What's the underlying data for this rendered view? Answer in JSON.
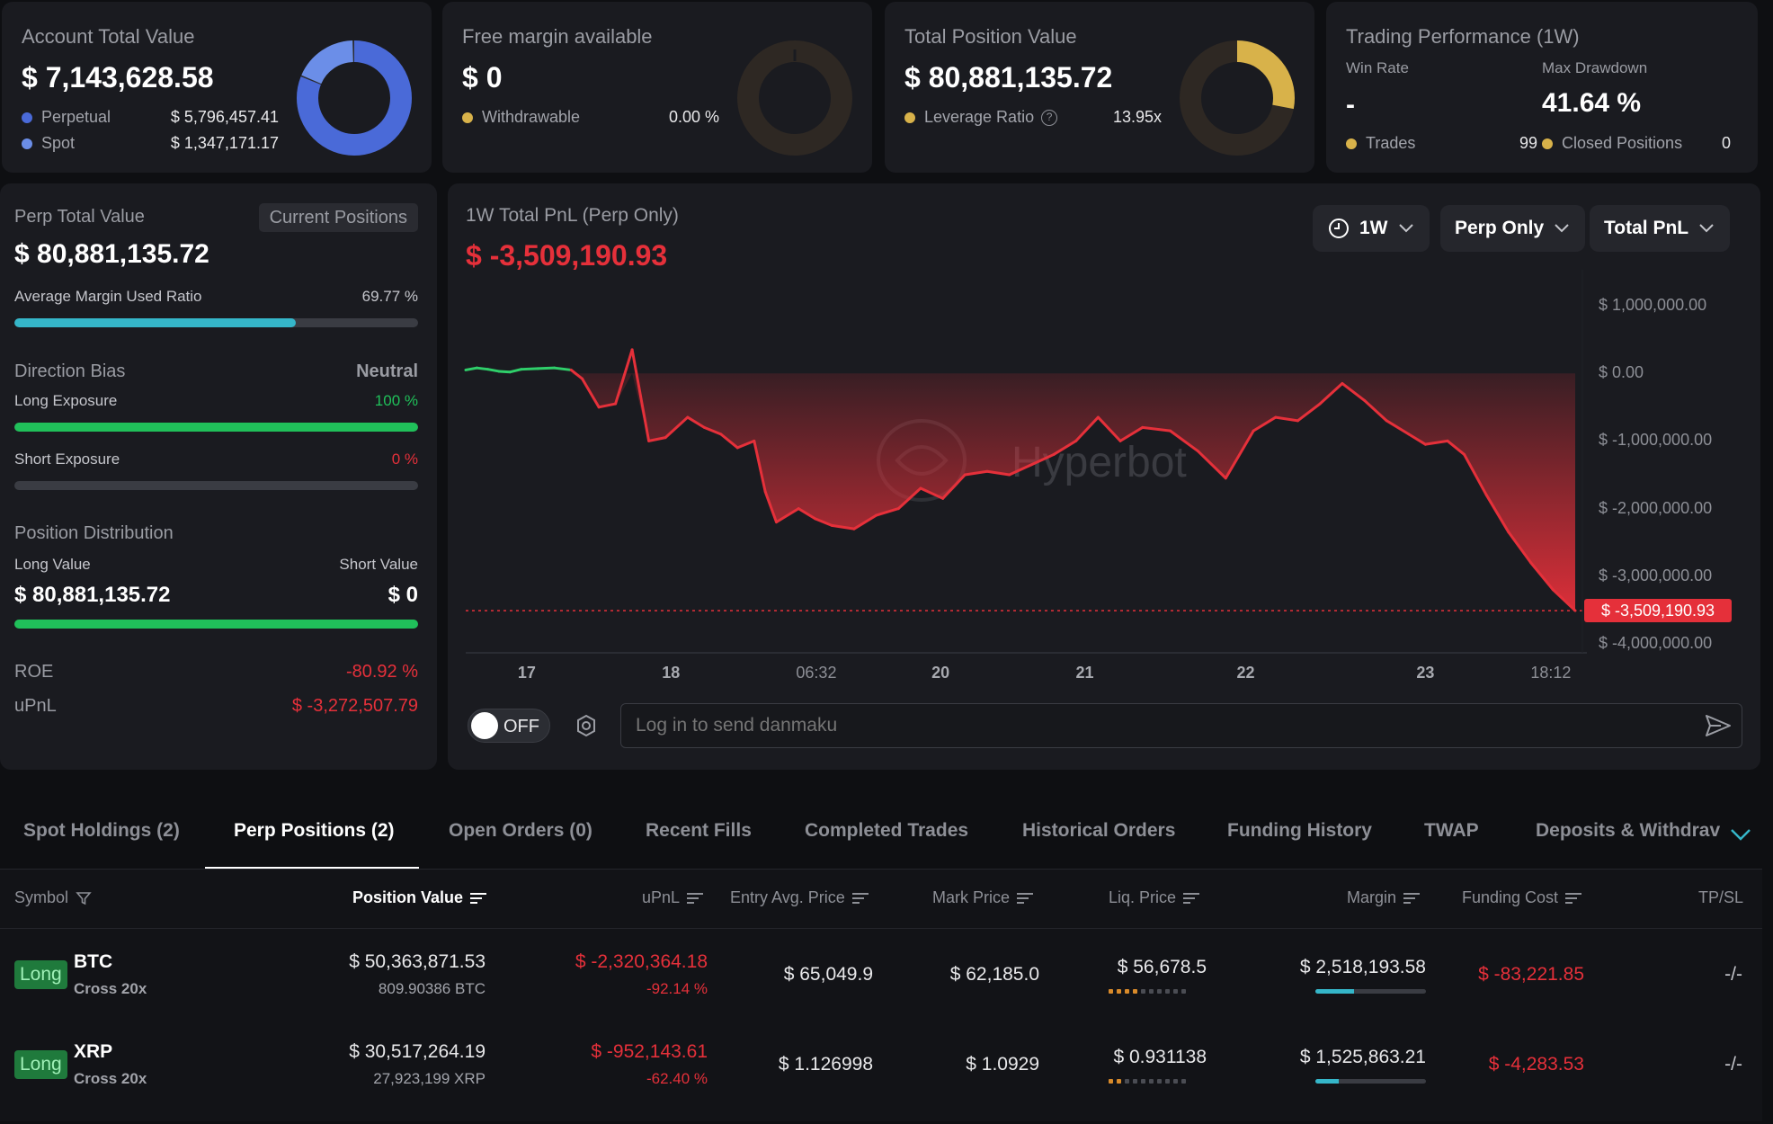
{
  "top_cards": {
    "account": {
      "title": "Account Total Value",
      "value": "$ 7,143,628.58",
      "legend": [
        {
          "label": "Perpetual",
          "value": "$ 5,796,457.41",
          "color": "#4a6ad8"
        },
        {
          "label": "Spot",
          "value": "$ 1,347,171.17",
          "color": "#6b8ee8"
        }
      ],
      "donut_fraction": 0.81
    },
    "margin": {
      "title": "Free margin available",
      "value": "$ 0",
      "legend": [
        {
          "label": "Withdrawable",
          "value": "0.00 %",
          "color": "#d8b24a"
        }
      ],
      "donut_fraction": 0.0
    },
    "position": {
      "title": "Total Position Value",
      "value": "$ 80,881,135.72",
      "legend": [
        {
          "label": "Leverage Ratio",
          "value": "13.95x",
          "color": "#d8b24a"
        }
      ],
      "donut_fraction": 0.28
    },
    "performance": {
      "title": "Trading Performance (1W)",
      "win_rate_label": "Win Rate",
      "win_rate_value": "-",
      "max_drawdown_label": "Max Drawdown",
      "max_drawdown_value": "41.64 %",
      "trades_label": "Trades",
      "trades_value": "99",
      "closed_label": "Closed Positions",
      "closed_value": "0",
      "dot_color": "#d8b24a"
    }
  },
  "left_panel": {
    "perp_title": "Perp Total Value",
    "current_positions_btn": "Current Positions",
    "perp_value": "$ 80,881,135.72",
    "avg_margin_label": "Average Margin Used Ratio",
    "avg_margin_value": "69.77 %",
    "avg_margin_fraction": 0.6977,
    "direction_label": "Direction Bias",
    "direction_value": "Neutral",
    "long_exposure_label": "Long Exposure",
    "long_exposure_value": "100 %",
    "long_exposure_fraction": 1.0,
    "short_exposure_label": "Short Exposure",
    "short_exposure_value": "0 %",
    "short_exposure_fraction": 0.0,
    "distribution_label": "Position Distribution",
    "long_value_label": "Long Value",
    "short_value_label": "Short Value",
    "long_value": "$ 80,881,135.72",
    "short_value": "$ 0",
    "long_share_fraction": 1.0,
    "roe_label": "ROE",
    "roe_value": "-80.92 %",
    "upnl_label": "uPnL",
    "upnl_value": "$ -3,272,507.79"
  },
  "chart_panel": {
    "title": "1W Total PnL (Perp Only)",
    "value": "$ -3,509,190.93",
    "dropdowns": {
      "range": "1W",
      "scope": "Perp Only",
      "metric": "Total PnL"
    },
    "watermark": "Hyperbot",
    "danmaku_toggle": "OFF",
    "danmaku_placeholder": "Log in to send danmaku"
  },
  "chart_data": {
    "type": "area",
    "ylim": [
      -4000000,
      1000000
    ],
    "y_ticks": [
      "$ 1,000,000.00",
      "$ 0.00",
      "$ -1,000,000.00",
      "$ -2,000,000.00",
      "$ -3,000,000.00",
      "$ -4,000,000.00"
    ],
    "y_tick_values": [
      1000000,
      0,
      -1000000,
      -2000000,
      -3000000,
      -4000000
    ],
    "x_ticks": [
      {
        "label": "17",
        "t": 0.055,
        "bold": true
      },
      {
        "label": "18",
        "t": 0.185,
        "bold": true
      },
      {
        "label": "06:32",
        "t": 0.316,
        "bold": false
      },
      {
        "label": "20",
        "t": 0.428,
        "bold": true
      },
      {
        "label": "21",
        "t": 0.558,
        "bold": true
      },
      {
        "label": "22",
        "t": 0.703,
        "bold": true
      },
      {
        "label": "23",
        "t": 0.865,
        "bold": true
      },
      {
        "label": "18:12",
        "t": 0.978,
        "bold": false
      }
    ],
    "last_value_label": "$ -3,509,190.93",
    "last_value": -3509190.93,
    "points": [
      {
        "t": 0.0,
        "v": 50000
      },
      {
        "t": 0.01,
        "v": 80000
      },
      {
        "t": 0.02,
        "v": 60000
      },
      {
        "t": 0.03,
        "v": 30000
      },
      {
        "t": 0.04,
        "v": 20000
      },
      {
        "t": 0.05,
        "v": 60000
      },
      {
        "t": 0.065,
        "v": 70000
      },
      {
        "t": 0.08,
        "v": 80000
      },
      {
        "t": 0.095,
        "v": 50000
      },
      {
        "t": 0.105,
        "v": -80000
      },
      {
        "t": 0.12,
        "v": -500000
      },
      {
        "t": 0.135,
        "v": -450000
      },
      {
        "t": 0.15,
        "v": 350000
      },
      {
        "t": 0.165,
        "v": -1000000
      },
      {
        "t": 0.18,
        "v": -950000
      },
      {
        "t": 0.2,
        "v": -650000
      },
      {
        "t": 0.215,
        "v": -800000
      },
      {
        "t": 0.23,
        "v": -900000
      },
      {
        "t": 0.245,
        "v": -1100000
      },
      {
        "t": 0.26,
        "v": -1000000
      },
      {
        "t": 0.27,
        "v": -1750000
      },
      {
        "t": 0.28,
        "v": -2200000
      },
      {
        "t": 0.3,
        "v": -2000000
      },
      {
        "t": 0.315,
        "v": -2150000
      },
      {
        "t": 0.33,
        "v": -2250000
      },
      {
        "t": 0.35,
        "v": -2300000
      },
      {
        "t": 0.37,
        "v": -2100000
      },
      {
        "t": 0.39,
        "v": -2000000
      },
      {
        "t": 0.41,
        "v": -1700000
      },
      {
        "t": 0.43,
        "v": -1850000
      },
      {
        "t": 0.45,
        "v": -1500000
      },
      {
        "t": 0.47,
        "v": -1450000
      },
      {
        "t": 0.49,
        "v": -1500000
      },
      {
        "t": 0.51,
        "v": -1350000
      },
      {
        "t": 0.53,
        "v": -1200000
      },
      {
        "t": 0.55,
        "v": -1000000
      },
      {
        "t": 0.57,
        "v": -650000
      },
      {
        "t": 0.59,
        "v": -1000000
      },
      {
        "t": 0.61,
        "v": -800000
      },
      {
        "t": 0.635,
        "v": -850000
      },
      {
        "t": 0.66,
        "v": -1150000
      },
      {
        "t": 0.685,
        "v": -1550000
      },
      {
        "t": 0.71,
        "v": -850000
      },
      {
        "t": 0.73,
        "v": -650000
      },
      {
        "t": 0.75,
        "v": -700000
      },
      {
        "t": 0.77,
        "v": -450000
      },
      {
        "t": 0.79,
        "v": -150000
      },
      {
        "t": 0.81,
        "v": -400000
      },
      {
        "t": 0.83,
        "v": -700000
      },
      {
        "t": 0.85,
        "v": -900000
      },
      {
        "t": 0.865,
        "v": -1050000
      },
      {
        "t": 0.885,
        "v": -1000000
      },
      {
        "t": 0.9,
        "v": -1200000
      },
      {
        "t": 0.92,
        "v": -1800000
      },
      {
        "t": 0.94,
        "v": -2350000
      },
      {
        "t": 0.96,
        "v": -2800000
      },
      {
        "t": 0.98,
        "v": -3200000
      },
      {
        "t": 1.0,
        "v": -3509190.93
      }
    ],
    "line_color_up": "#2fcf6a",
    "line_color_down": "#e5303a",
    "grid": false
  },
  "tabs": [
    {
      "label": "Spot Holdings (2)",
      "active": false
    },
    {
      "label": "Perp Positions (2)",
      "active": true
    },
    {
      "label": "Open Orders (0)",
      "active": false
    },
    {
      "label": "Recent Fills",
      "active": false
    },
    {
      "label": "Completed Trades",
      "active": false
    },
    {
      "label": "Historical Orders",
      "active": false
    },
    {
      "label": "Funding History",
      "active": false
    },
    {
      "label": "TWAP",
      "active": false
    },
    {
      "label": "Deposits & Withdrav",
      "active": false
    }
  ],
  "table": {
    "headers": {
      "symbol": "Symbol",
      "position_value": "Position Value",
      "upnl": "uPnL",
      "entry": "Entry Avg. Price",
      "mark": "Mark Price",
      "liq": "Liq. Price",
      "margin": "Margin",
      "funding": "Funding Cost",
      "tpsl": "TP/SL"
    },
    "rows": [
      {
        "side": "Long",
        "symbol": "BTC",
        "mode": "Cross 20x",
        "position_value": "$ 50,363,871.53",
        "position_size": "809.90386 BTC",
        "upnl": "$ -2,320,364.18",
        "upnl_pct": "-92.14 %",
        "entry": "$ 65,049.9",
        "mark": "$ 62,185.0",
        "liq": "$ 56,678.5",
        "liq_risk_dots": 4,
        "margin": "$ 2,518,193.58",
        "margin_fraction": 0.35,
        "funding": "$ -83,221.85",
        "tpsl": "-/-"
      },
      {
        "side": "Long",
        "symbol": "XRP",
        "mode": "Cross 20x",
        "position_value": "$ 30,517,264.19",
        "position_size": "27,923,199 XRP",
        "upnl": "$ -952,143.61",
        "upnl_pct": "-62.40 %",
        "entry": "$ 1.126998",
        "mark": "$ 1.0929",
        "liq": "$ 0.931138",
        "liq_risk_dots": 2,
        "margin": "$ 1,525,863.21",
        "margin_fraction": 0.21,
        "funding": "$ -4,283.53",
        "tpsl": "-/-"
      }
    ]
  }
}
